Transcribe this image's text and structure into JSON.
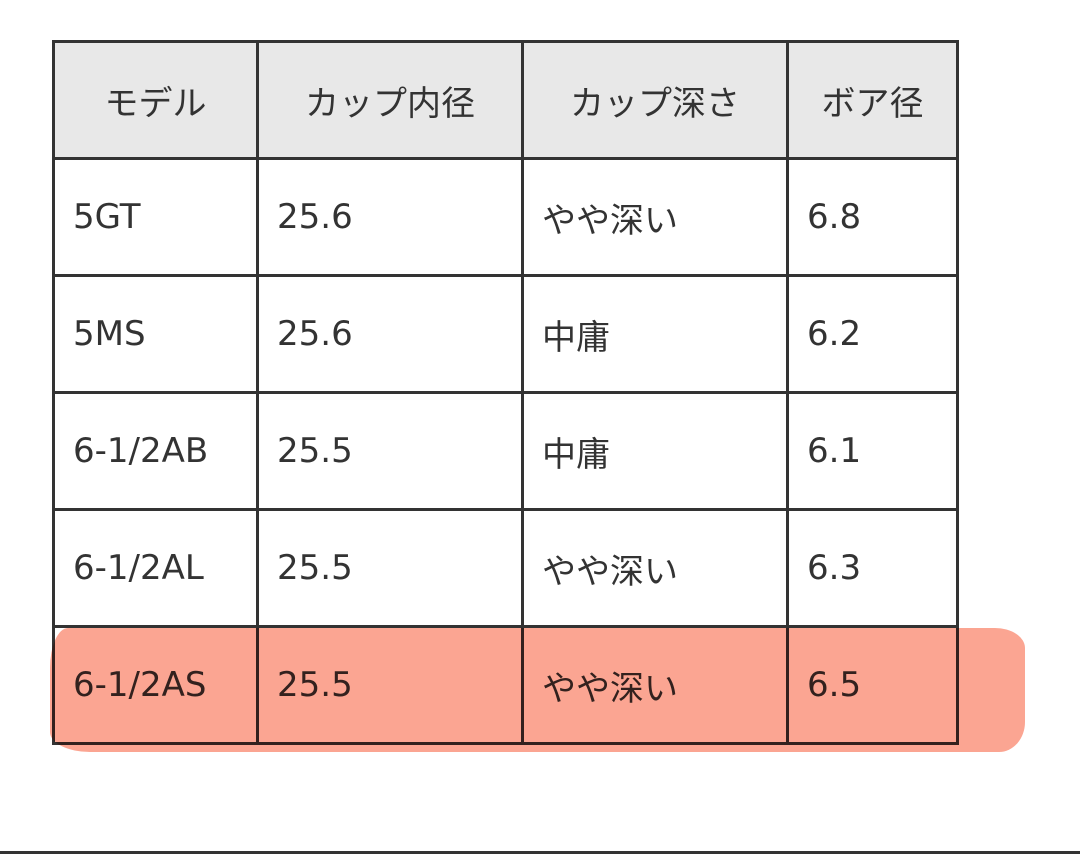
{
  "table": {
    "headers": [
      "モデル",
      "カップ内径",
      "カップ深さ",
      "ボア径"
    ],
    "rows": [
      [
        "5GT",
        "25.6",
        "やや深い",
        "6.8"
      ],
      [
        "5MS",
        "25.6",
        "中庸",
        "6.2"
      ],
      [
        "6-1/2AB",
        "25.5",
        "中庸",
        "6.1"
      ],
      [
        "6-1/2AL",
        "25.5",
        "やや深い",
        "6.3"
      ],
      [
        "6-1/2AS",
        "25.5",
        "やや深い",
        "6.5"
      ]
    ],
    "highlighted_row": 4,
    "highlight_color": "#fba08c",
    "header_bg": "#e8e8e8"
  }
}
